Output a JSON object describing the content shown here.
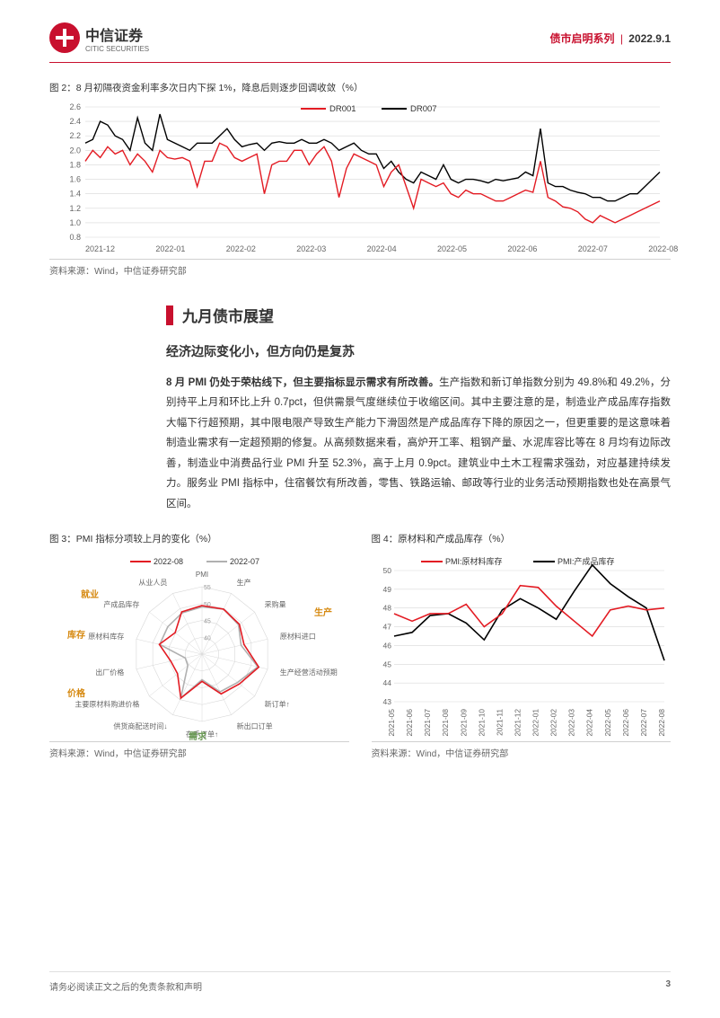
{
  "header": {
    "logo_cn": "中信证券",
    "logo_en": "CITIC SECURITIES",
    "series": "债市启明系列",
    "date": "2022.9.1"
  },
  "fig2": {
    "title_prefix": "图 2：",
    "title": "8 月初隔夜资金利率多次日内下探 1%，降息后则逐步回调收敛（%）",
    "legend1": "DR001",
    "legend2": "DR007",
    "legend1_color": "#e31b23",
    "legend2_color": "#000000",
    "x_labels": [
      "2021-12",
      "2022-01",
      "2022-02",
      "2022-03",
      "2022-04",
      "2022-05",
      "2022-06",
      "2022-07",
      "2022-08"
    ],
    "y_ticks": [
      "0.8",
      "1.0",
      "1.2",
      "1.4",
      "1.6",
      "1.8",
      "2.0",
      "2.2",
      "2.4",
      "2.6"
    ],
    "ylim": [
      0.8,
      2.6
    ],
    "grid_color": "#d8d8d8",
    "dr001": [
      1.85,
      2.0,
      1.9,
      2.05,
      1.95,
      2.0,
      1.8,
      1.95,
      1.85,
      1.7,
      2.0,
      1.9,
      1.88,
      1.9,
      1.85,
      1.5,
      1.85,
      1.85,
      2.1,
      2.05,
      1.9,
      1.85,
      1.9,
      1.95,
      1.4,
      1.8,
      1.85,
      1.85,
      2.0,
      2.0,
      1.8,
      1.95,
      2.05,
      1.85,
      1.35,
      1.75,
      1.95,
      1.9,
      1.85,
      1.8,
      1.5,
      1.7,
      1.8,
      1.5,
      1.2,
      1.6,
      1.55,
      1.5,
      1.55,
      1.4,
      1.35,
      1.45,
      1.4,
      1.4,
      1.35,
      1.3,
      1.3,
      1.35,
      1.4,
      1.45,
      1.42,
      1.85,
      1.35,
      1.3,
      1.22,
      1.2,
      1.15,
      1.05,
      1.0,
      1.1,
      1.05,
      1.0,
      1.05,
      1.1,
      1.15,
      1.2,
      1.25,
      1.3
    ],
    "dr007": [
      2.1,
      2.15,
      2.4,
      2.35,
      2.2,
      2.15,
      2.0,
      2.45,
      2.1,
      2.0,
      2.5,
      2.15,
      2.1,
      2.05,
      2.0,
      2.1,
      2.1,
      2.1,
      2.2,
      2.3,
      2.15,
      2.05,
      2.08,
      2.1,
      2.0,
      2.1,
      2.12,
      2.1,
      2.1,
      2.15,
      2.1,
      2.1,
      2.15,
      2.1,
      2.0,
      2.05,
      2.1,
      2.0,
      1.95,
      1.95,
      1.75,
      1.85,
      1.7,
      1.6,
      1.55,
      1.7,
      1.65,
      1.6,
      1.8,
      1.6,
      1.55,
      1.6,
      1.6,
      1.58,
      1.55,
      1.6,
      1.58,
      1.6,
      1.62,
      1.7,
      1.65,
      2.3,
      1.55,
      1.5,
      1.5,
      1.45,
      1.42,
      1.4,
      1.35,
      1.35,
      1.3,
      1.3,
      1.35,
      1.4,
      1.4,
      1.5,
      1.6,
      1.7
    ],
    "source": "资料来源：Wind，中信证券研究部"
  },
  "section": {
    "title": "九月债市展望",
    "subtitle": "经济边际变化小，但方向仍是复苏",
    "body_lead": "8 月 PMI 仍处于荣枯线下，但主要指标显示需求有所改善。",
    "body": "生产指数和新订单指数分别为 49.8%和 49.2%，分别持平上月和环比上升 0.7pct，但供需景气度继续位于收缩区间。其中主要注意的是，制造业产成品库存指数大幅下行超预期，其中限电限产导致生产能力下滑固然是产成品库存下降的原因之一，但更重要的是这意味着制造业需求有一定超预期的修复。从高频数据来看，高炉开工率、粗钢产量、水泥库容比等在 8 月均有边际改善，制造业中消费品行业 PMI 升至 52.3%，高于上月 0.9pct。建筑业中土木工程需求强劲，对应基建持续发力。服务业 PMI 指标中，住宿餐饮有所改善，零售、铁路运输、邮政等行业的业务活动预期指数也处在高景气区间。"
  },
  "fig3": {
    "title_prefix": "图 3：",
    "title": "PMI 指标分项较上月的变化（%）",
    "legend_a": "2022-08",
    "legend_b": "2022-07",
    "legend_a_color": "#e31b23",
    "legend_b_color": "#b0b0b0",
    "axes": [
      "PMI",
      "生产",
      "采购量",
      "原材料进口",
      "生产经营活动预期",
      "新订单↑",
      "新出口订单",
      "在手订单↑",
      "供货商配送时间↓",
      "主要原材料购进价格",
      "出厂价格",
      "原材料库存",
      "产成品库存",
      "从业人员"
    ],
    "ring_labels": [
      "35",
      "40",
      "45",
      "50",
      "55"
    ],
    "cat_labels": {
      "employment": "就业",
      "inventory": "库存",
      "price": "价格",
      "demand": "需求",
      "production": "生产"
    },
    "values_0807": [
      49.0,
      49.8,
      48.9,
      46.9,
      52.0,
      48.5,
      47.4,
      42.6,
      49.5,
      40.4,
      40.1,
      47.9,
      48.0,
      48.6
    ],
    "values_0808": [
      49.4,
      49.8,
      49.2,
      47.8,
      52.3,
      49.2,
      48.1,
      43.1,
      49.5,
      44.3,
      44.5,
      48.0,
      45.2,
      48.9
    ],
    "grid_color": "#d8d8d8",
    "source": "资料来源：Wind，中信证券研究部"
  },
  "fig4": {
    "title_prefix": "图 4：",
    "title": "原材料和产成品库存（%）",
    "legend1": "PMI:原材料库存",
    "legend2": "PMI:产成品库存",
    "legend1_color": "#e31b23",
    "legend2_color": "#000000",
    "x_labels": [
      "2021-05",
      "2021-06",
      "2021-07",
      "2021-08",
      "2021-09",
      "2021-10",
      "2021-11",
      "2021-12",
      "2022-01",
      "2022-02",
      "2022-03",
      "2022-04",
      "2022-05",
      "2022-06",
      "2022-07",
      "2022-08"
    ],
    "y_ticks": [
      "43",
      "44",
      "45",
      "46",
      "47",
      "48",
      "49",
      "50"
    ],
    "ylim": [
      43,
      50
    ],
    "grid_color": "#d8d8d8",
    "raw": [
      47.7,
      47.3,
      47.7,
      47.7,
      48.2,
      47.0,
      47.7,
      49.2,
      49.1,
      48.1,
      47.3,
      46.5,
      47.9,
      48.1,
      47.9,
      48.0
    ],
    "fin": [
      46.5,
      46.7,
      47.6,
      47.7,
      47.2,
      46.3,
      47.9,
      48.5,
      48.0,
      47.4,
      48.9,
      50.3,
      49.3,
      48.6,
      48.0,
      45.2
    ],
    "source": "资料来源：Wind，中信证券研究部"
  },
  "footer": {
    "disclaimer": "请务必阅读正文之后的免责条款和声明",
    "page": "3"
  }
}
